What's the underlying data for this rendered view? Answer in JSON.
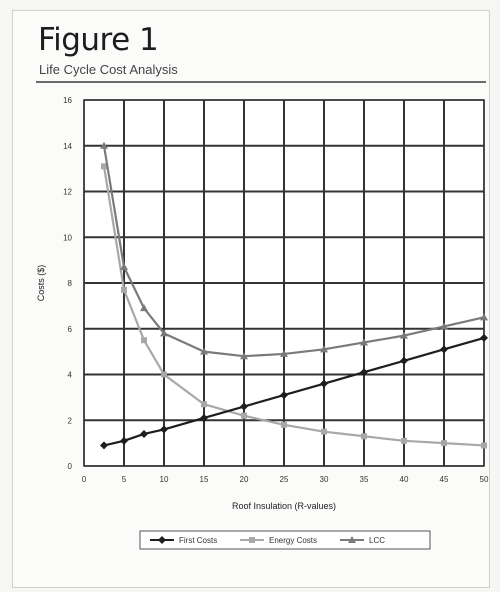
{
  "figure": {
    "title": "Figure 1",
    "subtitle": "Life Cycle Cost Analysis"
  },
  "chart_data": {
    "type": "line",
    "xlabel": "Roof Insulation (R-values)",
    "ylabel": "Costs ($)",
    "xlim": [
      0,
      50
    ],
    "ylim": [
      0,
      16
    ],
    "xticks": [
      0,
      5,
      10,
      15,
      20,
      25,
      30,
      35,
      40,
      45,
      50
    ],
    "yticks": [
      0,
      2,
      4,
      6,
      8,
      10,
      12,
      14,
      16
    ],
    "grid": true,
    "legend_position": "bottom",
    "series": [
      {
        "name": "First Costs",
        "color": "#1e1e1e",
        "marker": "diamond",
        "x": [
          2.5,
          5,
          7.5,
          10,
          15,
          20,
          25,
          30,
          35,
          40,
          45,
          50
        ],
        "y": [
          0.9,
          1.1,
          1.4,
          1.6,
          2.1,
          2.6,
          3.1,
          3.6,
          4.1,
          4.6,
          5.1,
          5.6
        ]
      },
      {
        "name": "Energy Costs",
        "color": "#a8a8a8",
        "marker": "square",
        "x": [
          2.5,
          5,
          7.5,
          10,
          15,
          20,
          25,
          30,
          35,
          40,
          45,
          50
        ],
        "y": [
          13.1,
          7.7,
          5.5,
          4.0,
          2.7,
          2.2,
          1.8,
          1.5,
          1.3,
          1.1,
          1.0,
          0.9
        ]
      },
      {
        "name": "LCC",
        "color": "#7a7a7a",
        "marker": "triangle",
        "x": [
          2.5,
          5,
          7.5,
          10,
          15,
          20,
          25,
          30,
          35,
          40,
          45,
          50
        ],
        "y": [
          14.0,
          8.7,
          6.9,
          5.8,
          5.0,
          4.8,
          4.9,
          5.1,
          5.4,
          5.7,
          6.1,
          6.5
        ]
      }
    ]
  }
}
